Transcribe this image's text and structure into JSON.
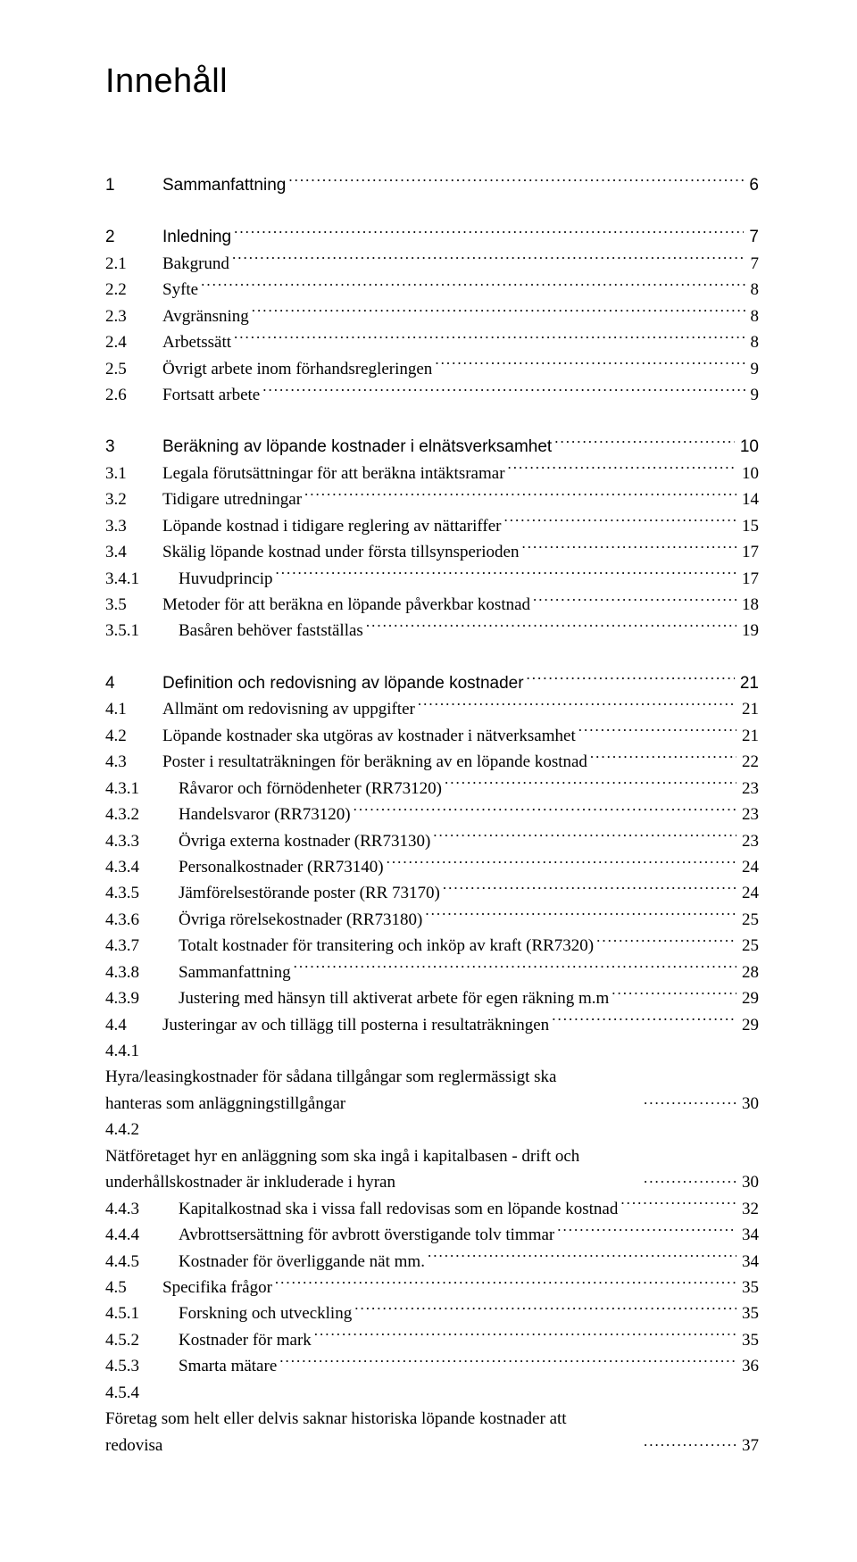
{
  "title": "Innehåll",
  "num_col_width_l1": "54px",
  "num_col_width_l2": "54px",
  "num_col_width_l3": "72px",
  "font": {
    "body_family": "Book Antiqua / Palatino",
    "heading_family": "Arial",
    "title_size_pt": 28,
    "body_size_pt": 14
  },
  "colors": {
    "background": "#ffffff",
    "text": "#000000"
  },
  "toc": [
    {
      "type": "h1",
      "num": "1",
      "label": "Sammanfattning",
      "page": "6"
    },
    {
      "type": "gap"
    },
    {
      "type": "h1",
      "num": "2",
      "label": "Inledning",
      "page": "7"
    },
    {
      "type": "h2",
      "num": "2.1",
      "label": "Bakgrund",
      "page": "7"
    },
    {
      "type": "h2",
      "num": "2.2",
      "label": "Syfte",
      "page": "8"
    },
    {
      "type": "h2",
      "num": "2.3",
      "label": "Avgränsning",
      "page": "8"
    },
    {
      "type": "h2",
      "num": "2.4",
      "label": "Arbetssätt",
      "page": "8"
    },
    {
      "type": "h2",
      "num": "2.5",
      "label": "Övrigt arbete inom förhandsregleringen",
      "page": "9"
    },
    {
      "type": "h2",
      "num": "2.6",
      "label": "Fortsatt arbete",
      "page": "9"
    },
    {
      "type": "gap"
    },
    {
      "type": "h1",
      "num": "3",
      "label": "Beräkning av löpande kostnader i elnätsverksamhet",
      "page": "10"
    },
    {
      "type": "h2",
      "num": "3.1",
      "label": "Legala förutsättningar för att beräkna intäktsramar",
      "page": "10"
    },
    {
      "type": "h2",
      "num": "3.2",
      "label": "Tidigare utredningar",
      "page": "14"
    },
    {
      "type": "h2",
      "num": "3.3",
      "label": "Löpande kostnad i tidigare reglering av nättariffer",
      "page": "15"
    },
    {
      "type": "h2",
      "num": "3.4",
      "label": "Skälig löpande kostnad under första tillsynsperioden",
      "page": "17"
    },
    {
      "type": "h3",
      "num": "3.4.1",
      "label": "Huvudprincip",
      "page": "17"
    },
    {
      "type": "h2",
      "num": "3.5",
      "label": "Metoder för att beräkna en löpande påverkbar kostnad",
      "page": "18"
    },
    {
      "type": "h3",
      "num": "3.5.1",
      "label": "Basåren behöver fastställas",
      "page": "19"
    },
    {
      "type": "gap"
    },
    {
      "type": "h1",
      "num": "4",
      "label": "Definition och redovisning av löpande kostnader",
      "page": "21"
    },
    {
      "type": "h2",
      "num": "4.1",
      "label": "Allmänt om redovisning av uppgifter",
      "page": "21"
    },
    {
      "type": "h2",
      "num": "4.2",
      "label": "Löpande kostnader ska utgöras av kostnader i nätverksamhet",
      "page": "21"
    },
    {
      "type": "h2",
      "num": "4.3",
      "label": "Poster i resultaträkningen för beräkning av en löpande kostnad",
      "page": "22"
    },
    {
      "type": "h3",
      "num": "4.3.1",
      "label": "Råvaror och förnödenheter (RR73120)",
      "page": "23"
    },
    {
      "type": "h3",
      "num": "4.3.2",
      "label": "Handelsvaror (RR73120)",
      "page": "23"
    },
    {
      "type": "h3",
      "num": "4.3.3",
      "label": "Övriga externa kostnader (RR73130)",
      "page": "23"
    },
    {
      "type": "h3",
      "num": "4.3.4",
      "label": "Personalkostnader (RR73140)",
      "page": "24"
    },
    {
      "type": "h3",
      "num": "4.3.5",
      "label": "Jämförelsestörande poster (RR 73170)",
      "page": "24"
    },
    {
      "type": "h3",
      "num": "4.3.6",
      "label": "Övriga rörelsekostnader (RR73180)",
      "page": "25"
    },
    {
      "type": "h3",
      "num": "4.3.7",
      "label": "Totalt kostnader för transitering och inköp av kraft (RR7320)",
      "page": "25"
    },
    {
      "type": "h3",
      "num": "4.3.8",
      "label": "Sammanfattning",
      "page": "28"
    },
    {
      "type": "h3",
      "num": "4.3.9",
      "label": "Justering med hänsyn till aktiverat arbete för egen räkning m.m",
      "page": "29"
    },
    {
      "type": "h2",
      "num": "4.4",
      "label": "Justeringar av och tillägg till posterna i resultaträkningen",
      "page": "29"
    },
    {
      "type": "h3m",
      "num": "4.4.1",
      "label": "Hyra/leasingkostnader för sådana tillgångar som reglermässigt ska hanteras som anläggningstillgångar",
      "page": "30"
    },
    {
      "type": "h3m",
      "num": "4.4.2",
      "label": "Nätföretaget hyr en anläggning som ska ingå i kapitalbasen - drift och underhållskostnader är inkluderade i hyran",
      "page": "30"
    },
    {
      "type": "h3",
      "num": "4.4.3",
      "label": "Kapitalkostnad ska i vissa fall redovisas som en löpande kostnad",
      "page": "32"
    },
    {
      "type": "h3",
      "num": "4.4.4",
      "label": "Avbrottsersättning för avbrott överstigande tolv timmar",
      "page": "34"
    },
    {
      "type": "h3",
      "num": "4.4.5",
      "label": "Kostnader för överliggande nät mm.",
      "page": "34"
    },
    {
      "type": "h2",
      "num": "4.5",
      "label": "Specifika frågor",
      "page": "35"
    },
    {
      "type": "h3",
      "num": "4.5.1",
      "label": "Forskning och utveckling",
      "page": "35"
    },
    {
      "type": "h3",
      "num": "4.5.2",
      "label": "Kostnader för mark",
      "page": "35"
    },
    {
      "type": "h3",
      "num": "4.5.3",
      "label": "Smarta mätare",
      "page": "36"
    },
    {
      "type": "h3m",
      "num": "4.5.4",
      "label": "Företag som helt eller delvis saknar historiska löpande kostnader att redovisa",
      "page": "37"
    }
  ]
}
